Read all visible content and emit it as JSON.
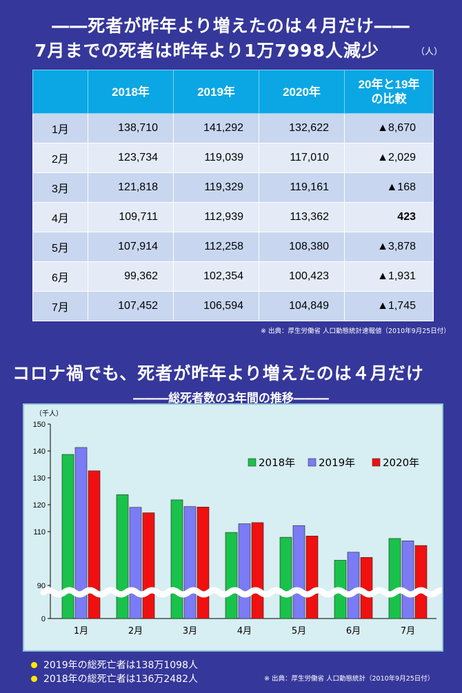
{
  "header": {
    "title1": "――死者が昨年より増えたのは４月だけ――",
    "title2": "7月までの死者は昨年より1万7998人減少",
    "unit": "（人）"
  },
  "table": {
    "columns": [
      "",
      "2018年",
      "2019年",
      "2020年",
      "20年と19年\nの比較"
    ],
    "rows": [
      {
        "month": "1月",
        "y2018": "138,710",
        "y2019": "141,292",
        "y2020": "132,622",
        "diff": "▲8,670",
        "highlight": false
      },
      {
        "month": "2月",
        "y2018": "123,734",
        "y2019": "119,039",
        "y2020": "117,010",
        "diff": "▲2,029",
        "highlight": false
      },
      {
        "month": "3月",
        "y2018": "121,818",
        "y2019": "119,329",
        "y2020": "119,161",
        "diff": "▲168",
        "highlight": false
      },
      {
        "month": "4月",
        "y2018": "109,711",
        "y2019": "112,939",
        "y2020": "113,362",
        "diff": "423",
        "highlight": true
      },
      {
        "month": "5月",
        "y2018": "107,914",
        "y2019": "112,258",
        "y2020": "108,380",
        "diff": "▲3,878",
        "highlight": false
      },
      {
        "month": "6月",
        "y2018": "99,362",
        "y2019": "102,354",
        "y2020": "100,423",
        "diff": "▲1,931",
        "highlight": false
      },
      {
        "month": "7月",
        "y2018": "107,452",
        "y2019": "106,594",
        "y2020": "104,849",
        "diff": "▲1,745",
        "highlight": false
      }
    ],
    "source": "※ 出典：厚生労働省 人口動態統計速報値（2010年9月25日付）"
  },
  "chart_title": "コロナ禍でも、死者が昨年より増えたのは４月だけ",
  "chart_subtitle": "―――総死者数の3年間の推移―――",
  "chart_data": {
    "type": "bar",
    "ylabel": "（千人）",
    "ylim": [
      80,
      150
    ],
    "yticks": [
      "0",
      "90",
      "110",
      "120",
      "130",
      "140",
      "150"
    ],
    "axis_break": "wavy break between 0 and 90",
    "categories": [
      "1月",
      "2月",
      "3月",
      "4月",
      "5月",
      "6月",
      "7月"
    ],
    "series": [
      {
        "name": "2018年",
        "color": "#19c24a",
        "values": [
          138.71,
          123.734,
          121.818,
          109.711,
          107.914,
          99.362,
          107.452
        ]
      },
      {
        "name": "2019年",
        "color": "#7b7bf5",
        "values": [
          141.292,
          119.039,
          119.329,
          112.939,
          112.258,
          102.354,
          106.594
        ]
      },
      {
        "name": "2020年",
        "color": "#f01010",
        "values": [
          132.622,
          117.01,
          119.161,
          113.362,
          108.38,
          100.423,
          104.849
        ]
      }
    ]
  },
  "notes": [
    "2019年の総死亡者は138万1098人",
    "2018年の総死亡者は136万2482人"
  ],
  "chart_source": "※ 出典：厚生労働省 人口動態統計（2010年9月25日付）"
}
